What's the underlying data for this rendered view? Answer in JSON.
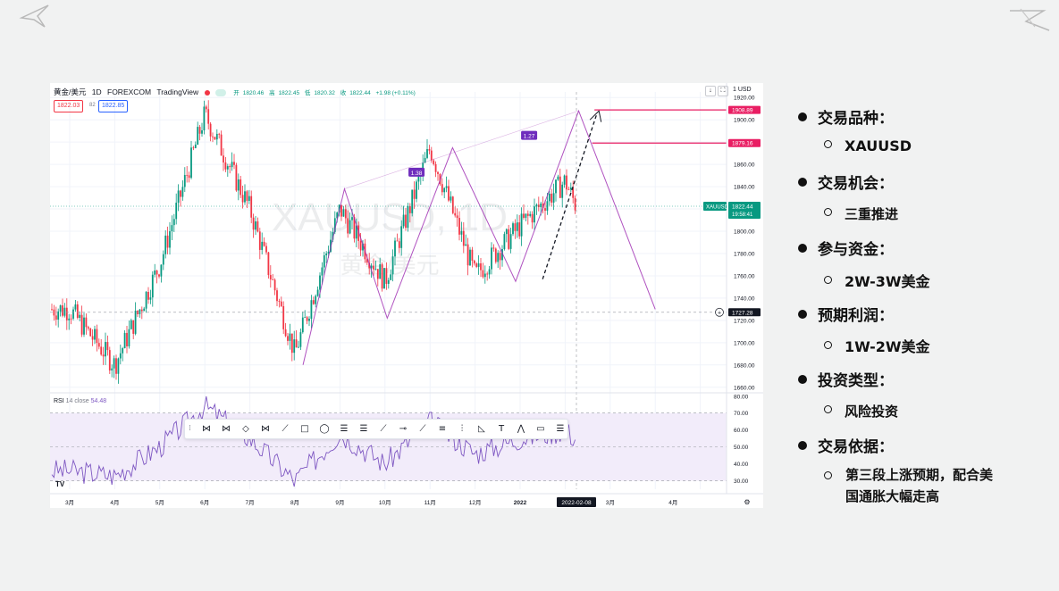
{
  "chart_header": {
    "symbol": "黄金/美元",
    "interval": "1D",
    "broker": "FOREXCOM",
    "platform": "TradingView",
    "open_label": "开",
    "open": "1820.46",
    "high_label": "高",
    "high": "1822.45",
    "low_label": "低",
    "low": "1820.32",
    "close_label": "收",
    "close": "1822.44",
    "change": "+1.98 (+0.11%)",
    "bid": "1822.03",
    "spread": "82",
    "ask": "1822.85",
    "currency_selector": "1 USD"
  },
  "watermark": {
    "symbol": "XAUUSD, 1D",
    "name": "黄金/美元"
  },
  "rsi_header": {
    "name": "RSI",
    "params": "14 close",
    "value": "54.48"
  },
  "price_badges": {
    "target1": "1908.89",
    "target2": "1879.16",
    "current_symbol": "XAUUSD",
    "current_price": "1822.44",
    "countdown": "19:58:41",
    "crosshair_price": "1727.28",
    "crosshair_date": "2022-02-08"
  },
  "pattern_labels": [
    "1.38",
    "1.27"
  ],
  "colors": {
    "up": "#089981",
    "down": "#f23645",
    "pattern": "#9c27b0",
    "target_line": "#e91e63",
    "rsi_line": "#7e57c2",
    "rsi_band": "#f2ecfa"
  },
  "chart_data": {
    "type": "line",
    "title": "",
    "series": [
      {
        "name": "XAUUSD",
        "x": [
          "3月",
          "4月",
          "5月",
          "6月",
          "7月",
          "8月",
          "9月",
          "10月",
          "11月",
          "12月",
          "2022",
          "2月",
          "2022-02-08"
        ],
        "values": [
          1730,
          1680,
          1770,
          1905,
          1820,
          1690,
          1820,
          1755,
          1875,
          1760,
          1805,
          1845,
          1822
        ]
      },
      {
        "name": "RSI",
        "x": [
          "3月",
          "4月",
          "5月",
          "6月",
          "7月",
          "8月",
          "9月",
          "10月",
          "11月",
          "12月",
          "2022",
          "2月",
          "2022-02-08"
        ],
        "values": [
          36,
          33,
          50,
          74,
          55,
          30,
          58,
          40,
          65,
          46,
          55,
          60,
          54.48
        ]
      }
    ],
    "projection": [
      1727.28,
      1908.89,
      1727.28
    ],
    "x_ticks": [
      "3月",
      "4月",
      "5月",
      "6月",
      "7月",
      "8月",
      "9月",
      "10月",
      "11月",
      "12月",
      "2022",
      "3月",
      "4月"
    ],
    "y_ticks": [
      "1920.00",
      "1900.00",
      "1880.00",
      "1860.00",
      "1840.00",
      "1820.00",
      "1800.00",
      "1780.00",
      "1760.00",
      "1740.00",
      "1720.00",
      "1700.00",
      "1680.00",
      "1660.00"
    ],
    "rsi_ticks": [
      "80.00",
      "70.00",
      "60.00",
      "50.00",
      "40.00",
      "30.00"
    ],
    "ylim": [
      1655,
      1925
    ],
    "rsi_ylim": [
      25,
      82
    ]
  },
  "toolbar_icons": [
    "pattern-xabcd",
    "pattern-cypher",
    "pattern-head-shoulders",
    "pattern-abcd",
    "pattern-triangle",
    "rectangle",
    "ellipse",
    "fib-retracement",
    "fib-channel",
    "trend-line",
    "horizontal-ray",
    "info-line",
    "parallel-channel",
    "vertical-line",
    "triangle",
    "text",
    "elliott-wave",
    "callout",
    "fib-extension"
  ],
  "bullets": [
    {
      "title": "交易品种：",
      "sub": "XAUUSD"
    },
    {
      "title": "交易机会：",
      "sub": "三重推进"
    },
    {
      "title": "参与资金：",
      "sub": "2W-3W美金"
    },
    {
      "title": "预期利润：",
      "sub": "1W-2W美金"
    },
    {
      "title": "投资类型：",
      "sub": "风险投资"
    },
    {
      "title": "交易依据：",
      "sub": "第三段上涨预期，配合美国通胀大幅走高"
    }
  ]
}
